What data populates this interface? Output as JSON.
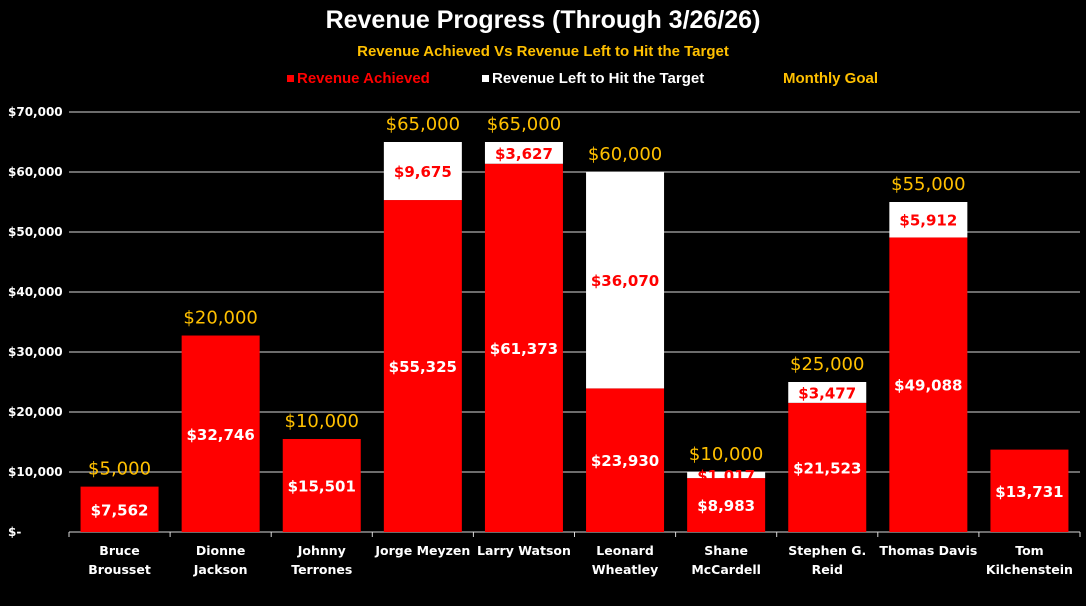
{
  "chart_data": {
    "type": "bar",
    "stacked": true,
    "title": "Revenue Progress (Through 3/26/26)",
    "subtitle": "Revenue Achieved Vs Revenue Left to Hit the Target",
    "xlabel": "",
    "ylabel": "",
    "ylim": [
      0,
      70000
    ],
    "yticks": [
      0,
      10000,
      20000,
      30000,
      40000,
      50000,
      60000,
      70000
    ],
    "ytick_labels": [
      "$-",
      "$10,000",
      "$20,000",
      "$30,000",
      "$40,000",
      "$50,000",
      "$60,000",
      "$70,000"
    ],
    "grid": true,
    "legend_position": "top",
    "categories": [
      [
        "Bruce",
        "Brousset"
      ],
      [
        "Dionne",
        "Jackson"
      ],
      [
        "Johnny",
        "Terrones"
      ],
      [
        "Jorge Meyzen"
      ],
      [
        "Larry Watson"
      ],
      [
        "Leonard",
        "Wheatley"
      ],
      [
        "Shane",
        "McCardell"
      ],
      [
        "Stephen G.",
        "Reid"
      ],
      [
        "Thomas Davis"
      ],
      [
        "Tom",
        "Kilchenstein"
      ]
    ],
    "series": [
      {
        "name": "Revenue Achieved",
        "color": "#FF0000",
        "values": [
          7562,
          32746,
          15501,
          55325,
          61373,
          23930,
          8983,
          21523,
          49088,
          13731
        ],
        "labels": [
          "$7,562",
          "$32,746",
          "$15,501",
          "$55,325",
          "$61,373",
          "$23,930",
          "$8,983",
          "$21,523",
          "$49,088",
          "$13,731"
        ]
      },
      {
        "name": "Revenue Left to Hit the Target",
        "color": "#FFFFFF",
        "values": [
          0,
          0,
          0,
          9675,
          3627,
          36070,
          1017,
          3477,
          5912,
          0
        ],
        "labels": [
          "",
          "",
          "",
          "$9,675",
          "$3,627",
          "$36,070",
          "$1,017",
          "$3,477",
          "$5,912",
          ""
        ]
      },
      {
        "name": "Monthly Goal",
        "color": "#FFC000",
        "values": [
          5000,
          20000,
          10000,
          65000,
          65000,
          60000,
          10000,
          25000,
          55000,
          null
        ],
        "labels": [
          "$5,000",
          "$20,000",
          "$10,000",
          "$65,000",
          "$65,000",
          "$60,000",
          "$10,000",
          "$25,000",
          "$55,000",
          ""
        ]
      }
    ]
  },
  "legend": [
    {
      "label": "Revenue Achieved",
      "color": "#FF0000",
      "marker": true
    },
    {
      "label": "Revenue Left to Hit the Target",
      "color": "#FFFFFF",
      "marker": true
    },
    {
      "label": "Monthly Goal",
      "color": "#FFC000",
      "marker": false
    }
  ],
  "colors": {
    "background": "#000000",
    "achieved": "#FF0000",
    "remaining": "#FFFFFF",
    "goal": "#FFC000",
    "grid": "#D9D9D9"
  }
}
